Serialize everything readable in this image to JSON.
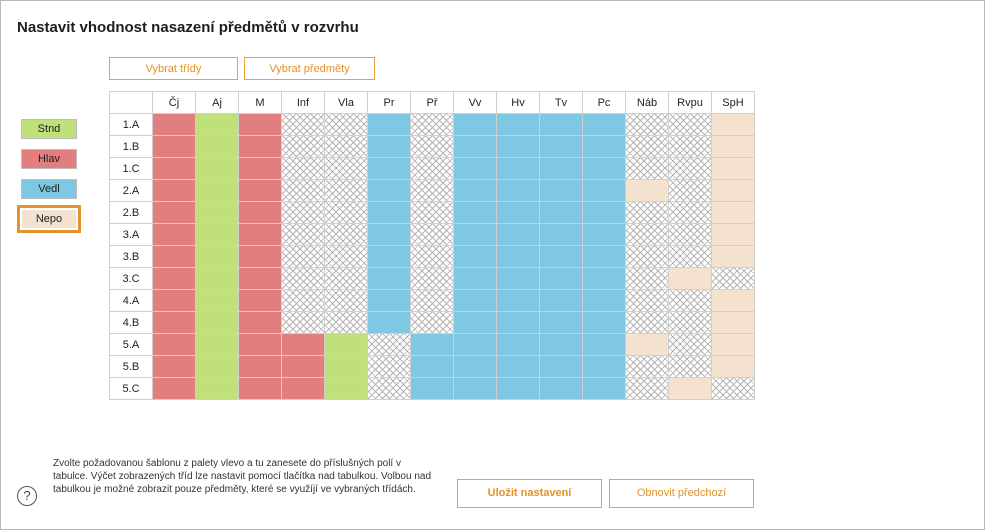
{
  "title": "Nastavit vhodnost nasazení předmětů v rozvrhu",
  "buttons": {
    "select_classes": "Vybrat třídy",
    "select_subjects": "Vybrat předměty",
    "save": "Uložit nastavení",
    "restore": "Obnovit předchozí"
  },
  "palette": [
    {
      "key": "stnd",
      "label": "Stnd",
      "color": "#bfe07a"
    },
    {
      "key": "hlav",
      "label": "Hlav",
      "color": "#e37e7e"
    },
    {
      "key": "vedl",
      "label": "Vedl",
      "color": "#7ec8e3"
    },
    {
      "key": "nepo",
      "label": "Nepo",
      "color": "#f4e2cf",
      "selected": true
    }
  ],
  "grid": {
    "columns": [
      "Čj",
      "Aj",
      "M",
      "Inf",
      "Vla",
      "Pr",
      "Př",
      "Vv",
      "Hv",
      "Tv",
      "Pc",
      "Náb",
      "Rvpu",
      "SpH"
    ],
    "rows": [
      {
        "label": "1.A",
        "cells": [
          "h",
          "s",
          "h",
          "x",
          "x",
          "v",
          "x",
          "v",
          "v",
          "v",
          "v",
          "x",
          "x",
          "n"
        ]
      },
      {
        "label": "1.B",
        "cells": [
          "h",
          "s",
          "h",
          "x",
          "x",
          "v",
          "x",
          "v",
          "v",
          "v",
          "v",
          "x",
          "x",
          "n"
        ]
      },
      {
        "label": "1.C",
        "cells": [
          "h",
          "s",
          "h",
          "x",
          "x",
          "v",
          "x",
          "v",
          "v",
          "v",
          "v",
          "x",
          "x",
          "n"
        ]
      },
      {
        "label": "2.A",
        "cells": [
          "h",
          "s",
          "h",
          "x",
          "x",
          "v",
          "x",
          "v",
          "v",
          "v",
          "v",
          "n",
          "x",
          "n"
        ]
      },
      {
        "label": "2.B",
        "cells": [
          "h",
          "s",
          "h",
          "x",
          "x",
          "v",
          "x",
          "v",
          "v",
          "v",
          "v",
          "x",
          "x",
          "n"
        ]
      },
      {
        "label": "3.A",
        "cells": [
          "h",
          "s",
          "h",
          "x",
          "x",
          "v",
          "x",
          "v",
          "v",
          "v",
          "v",
          "x",
          "x",
          "n"
        ]
      },
      {
        "label": "3.B",
        "cells": [
          "h",
          "s",
          "h",
          "x",
          "x",
          "v",
          "x",
          "v",
          "v",
          "v",
          "v",
          "x",
          "x",
          "n"
        ]
      },
      {
        "label": "3.C",
        "cells": [
          "h",
          "s",
          "h",
          "x",
          "x",
          "v",
          "x",
          "v",
          "v",
          "v",
          "v",
          "x",
          "n",
          "x"
        ]
      },
      {
        "label": "4.A",
        "cells": [
          "h",
          "s",
          "h",
          "x",
          "x",
          "v",
          "x",
          "v",
          "v",
          "v",
          "v",
          "x",
          "x",
          "n"
        ]
      },
      {
        "label": "4.B",
        "cells": [
          "h",
          "s",
          "h",
          "x",
          "x",
          "v",
          "x",
          "v",
          "v",
          "v",
          "v",
          "x",
          "x",
          "n"
        ]
      },
      {
        "label": "5.A",
        "cells": [
          "h",
          "s",
          "h",
          "h",
          "s",
          "x",
          "v",
          "v",
          "v",
          "v",
          "v",
          "n",
          "x",
          "n"
        ]
      },
      {
        "label": "5.B",
        "cells": [
          "h",
          "s",
          "h",
          "h",
          "s",
          "x",
          "v",
          "v",
          "v",
          "v",
          "v",
          "x",
          "x",
          "n"
        ]
      },
      {
        "label": "5.C",
        "cells": [
          "h",
          "s",
          "h",
          "h",
          "s",
          "x",
          "v",
          "v",
          "v",
          "v",
          "v",
          "x",
          "n",
          "x"
        ]
      }
    ]
  },
  "help": {
    "icon": "question-icon",
    "text": "Zvolte požadovanou šablonu z palety vlevo a tu zanesete do příslušných polí v tabulce. Výčet zobrazených tříd lze nastavit pomocí tlačítka nad tabulkou. Volbou nad tabulkou je možné zobrazit pouze předměty, které se využíjí ve vybraných třídách."
  }
}
